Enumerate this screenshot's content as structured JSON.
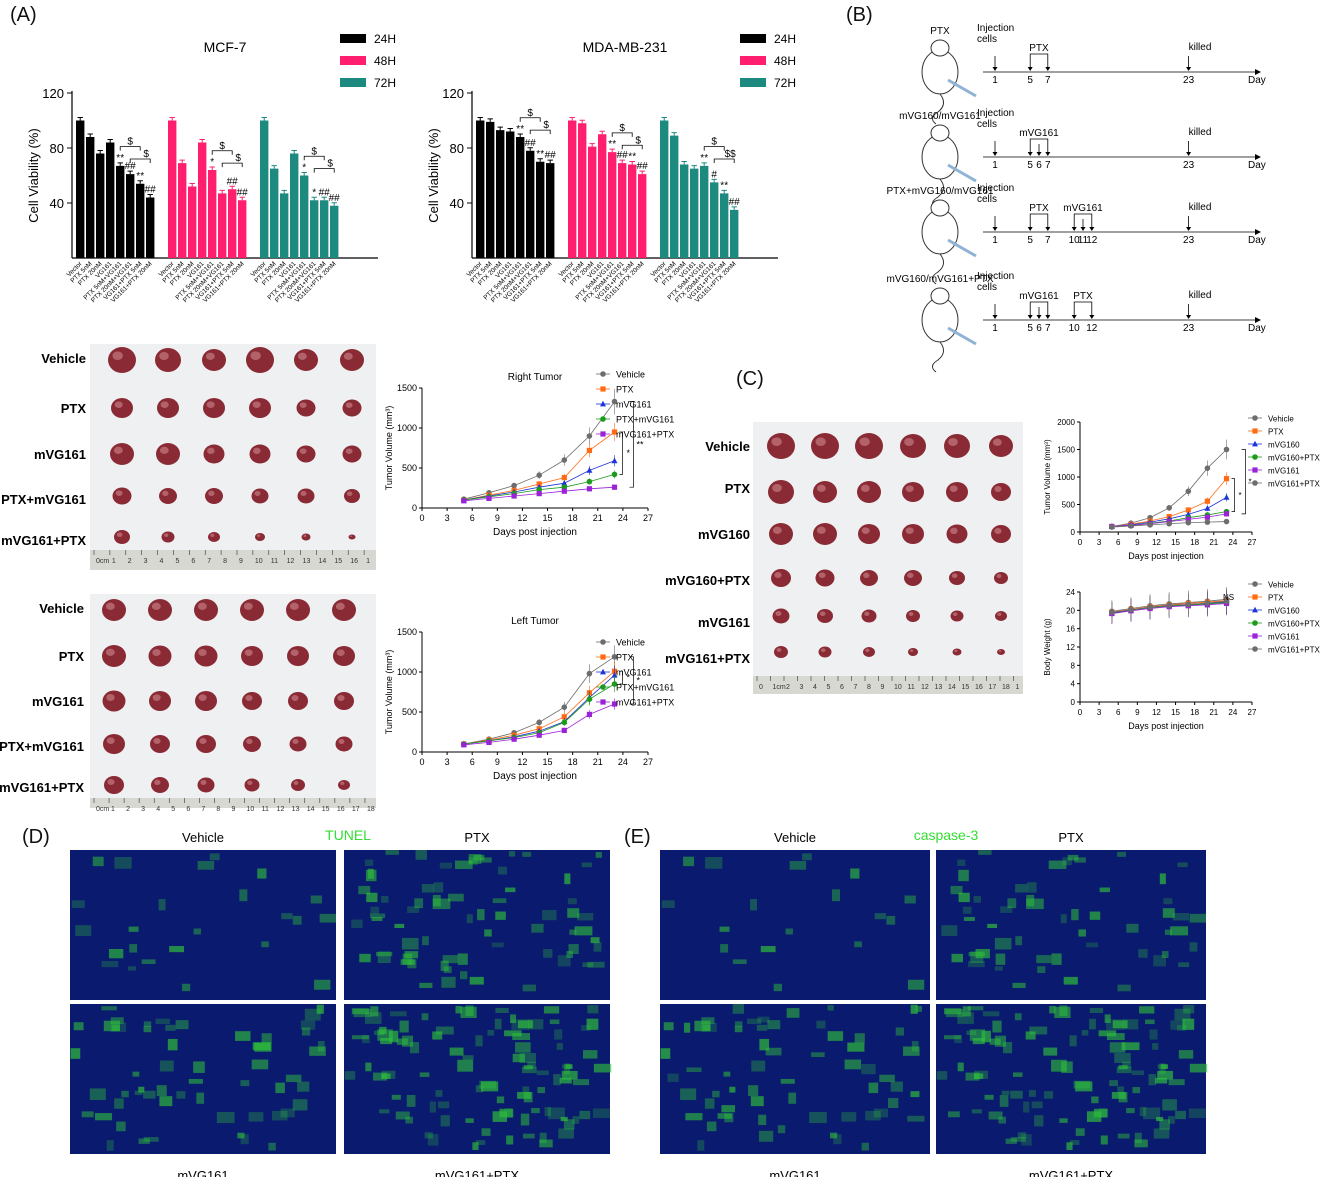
{
  "panels": {
    "A": "(A)",
    "B": "(B)",
    "C": "(C)",
    "D": "(D)",
    "E": "(E)"
  },
  "colors": {
    "black": "#000000",
    "pink": "#ff1f6e",
    "teal": "#1d8a80",
    "vehicle": "#6d6d6d",
    "ptx": "#ff6a13",
    "mvg161": "#1d35d8",
    "combo": "#1c9b1c",
    "mvg161ptx": "#9b22d6",
    "mvg160": "#1d35d8"
  },
  "chart_data": [
    {
      "id": "mcf7",
      "type": "bar",
      "title": "MCF-7",
      "ylabel": "Cell Viability (%)",
      "ylim": [
        0,
        120
      ],
      "yticks": [
        40,
        80,
        120
      ],
      "legend": [
        "24H",
        "48H",
        "72H"
      ],
      "groups": [
        {
          "name": "24H",
          "color": "#000000",
          "categories": [
            "Vector",
            "PTX 5nM",
            "PTX 20nM",
            "VG161",
            "PTX 5nM+VG161",
            "PTX 20nM+VG161",
            "VG161+PTX 5nM",
            "VG161+PTX 20nM"
          ],
          "values": [
            100,
            88,
            76,
            84,
            67,
            61,
            54,
            44
          ],
          "marks": [
            "",
            "",
            "",
            "",
            "**",
            "##",
            "**",
            "##"
          ]
        },
        {
          "name": "48H",
          "color": "#ff1f6e",
          "categories": [
            "Vector",
            "PTX 5nM",
            "PTX 20nM",
            "VG161",
            "PTX 5nM+VG161",
            "PTX 20nM+VG161",
            "VG161+PTX 5nM",
            "VG161+PTX 20nM"
          ],
          "values": [
            100,
            69,
            52,
            84,
            64,
            47,
            50,
            42
          ],
          "marks": [
            "",
            "",
            "",
            "",
            "*",
            "",
            "##",
            "##"
          ]
        },
        {
          "name": "72H",
          "color": "#1d8a80",
          "categories": [
            "Vector",
            "PTX 5nM",
            "PTX 20nM",
            "VG161",
            "PTX 5nM+VG161",
            "PTX 20nM+VG161",
            "VG161+PTX 5nM",
            "VG161+PTX 20nM"
          ],
          "values": [
            100,
            65,
            47,
            76,
            60,
            42,
            42,
            38
          ],
          "marks": [
            "",
            "",
            "",
            "",
            "*",
            "*",
            "##",
            "##"
          ]
        }
      ],
      "brackets": [
        "$",
        "$"
      ]
    },
    {
      "id": "mda",
      "type": "bar",
      "title": "MDA-MB-231",
      "ylabel": "Cell Viability (%)",
      "ylim": [
        0,
        120
      ],
      "yticks": [
        40,
        80,
        120
      ],
      "legend": [
        "24H",
        "48H",
        "72H"
      ],
      "groups": [
        {
          "name": "24H",
          "color": "#000000",
          "categories": [
            "Vector",
            "PTX 5nM",
            "PTX 20nM",
            "VG161",
            "PTX 5nM+VG161",
            "PTX 20nM+VG161",
            "VG161+PTX 5nM",
            "VG161+PTX 20nM"
          ],
          "values": [
            100,
            99,
            93,
            92,
            88,
            78,
            70,
            69
          ],
          "marks": [
            "",
            "",
            "",
            "",
            "**",
            "##",
            "**",
            "##"
          ]
        },
        {
          "name": "48H",
          "color": "#ff1f6e",
          "categories": [
            "Vector",
            "PTX 5nM",
            "PTX 20nM",
            "VG161",
            "PTX 5nM+VG161",
            "PTX 20nM+VG161",
            "VG161+PTX 5nM",
            "VG161+PTX 20nM"
          ],
          "values": [
            100,
            98,
            81,
            90,
            77,
            69,
            68,
            61
          ],
          "marks": [
            "",
            "",
            "",
            "",
            "**",
            "##",
            "**",
            "##"
          ]
        },
        {
          "name": "72H",
          "color": "#1d8a80",
          "categories": [
            "Vector",
            "PTX 5nM",
            "PTX 20nM",
            "VG161",
            "PTX 5nM+VG161",
            "PTX 20nM+VG161",
            "VG161+PTX 5nM",
            "VG161+PTX 20nM"
          ],
          "values": [
            100,
            89,
            68,
            65,
            67,
            55,
            47,
            35
          ],
          "marks": [
            "",
            "",
            "",
            "",
            "**",
            "#",
            "**",
            "##"
          ]
        }
      ],
      "brackets": [
        "$",
        "$",
        "$$",
        "$$"
      ]
    },
    {
      "id": "right-tumor",
      "type": "line",
      "title": "Right Tumor",
      "xlabel": "Days post injection",
      "ylabel": "Tumor Volume (mm³)",
      "xlim": [
        0,
        27
      ],
      "ylim": [
        0,
        1500
      ],
      "xticks": [
        0,
        3,
        6,
        9,
        12,
        15,
        18,
        21,
        24,
        27
      ],
      "yticks": [
        0,
        500,
        1000,
        1500
      ],
      "x": [
        5,
        8,
        11,
        14,
        17,
        20,
        23
      ],
      "series": [
        {
          "name": "Vehicle",
          "color": "#6d6d6d",
          "marker": "circle",
          "values": [
            110,
            190,
            280,
            410,
            600,
            900,
            1330
          ]
        },
        {
          "name": "PTX",
          "color": "#ff6a13",
          "marker": "square",
          "values": [
            100,
            160,
            220,
            300,
            380,
            720,
            950
          ]
        },
        {
          "name": "mVG161",
          "color": "#1d35d8",
          "marker": "triangle",
          "values": [
            100,
            150,
            200,
            260,
            310,
            470,
            590
          ]
        },
        {
          "name": "PTX+mVG161",
          "color": "#1c9b1c",
          "marker": "circle",
          "values": [
            100,
            140,
            180,
            230,
            260,
            330,
            420
          ]
        },
        {
          "name": "mVG161+PTX",
          "color": "#9b22d6",
          "marker": "square",
          "values": [
            90,
            120,
            150,
            180,
            210,
            240,
            260
          ]
        }
      ],
      "sig": [
        "*",
        "**"
      ]
    },
    {
      "id": "left-tumor",
      "type": "line",
      "title": "Left Tumor",
      "xlabel": "Days post injection",
      "ylabel": "Tumor Volume (mm³)",
      "xlim": [
        0,
        27
      ],
      "ylim": [
        0,
        1500
      ],
      "xticks": [
        0,
        3,
        6,
        9,
        12,
        15,
        18,
        21,
        24,
        27
      ],
      "yticks": [
        0,
        500,
        1000,
        1500
      ],
      "x": [
        5,
        8,
        11,
        14,
        17,
        20,
        23
      ],
      "series": [
        {
          "name": "Vehicle",
          "color": "#6d6d6d",
          "marker": "circle",
          "values": [
            100,
            160,
            240,
            370,
            560,
            980,
            1190
          ]
        },
        {
          "name": "PTX",
          "color": "#ff6a13",
          "marker": "square",
          "values": [
            100,
            150,
            210,
            290,
            440,
            740,
            1010
          ]
        },
        {
          "name": "mVG161",
          "color": "#1d35d8",
          "marker": "triangle",
          "values": [
            100,
            140,
            190,
            260,
            380,
            680,
            960
          ]
        },
        {
          "name": "PTX+mVG161",
          "color": "#1c9b1c",
          "marker": "circle",
          "values": [
            100,
            140,
            180,
            240,
            370,
            660,
            850
          ]
        },
        {
          "name": "mVG161+PTX",
          "color": "#9b22d6",
          "marker": "square",
          "values": [
            90,
            120,
            160,
            210,
            270,
            470,
            600
          ]
        }
      ],
      "sig": [
        "*",
        "*"
      ]
    },
    {
      "id": "c-tumor",
      "type": "line",
      "title": "",
      "xlabel": "Days post injection",
      "ylabel": "Tumor Volume (mm³)",
      "xlim": [
        0,
        27
      ],
      "ylim": [
        0,
        2000
      ],
      "xticks": [
        0,
        3,
        6,
        9,
        12,
        15,
        18,
        21,
        24,
        27
      ],
      "yticks": [
        0,
        500,
        1000,
        1500,
        2000
      ],
      "x": [
        5,
        8,
        11,
        14,
        17,
        20,
        23
      ],
      "series": [
        {
          "name": "Vehicle",
          "color": "#6d6d6d",
          "marker": "circle",
          "values": [
            100,
            160,
            260,
            440,
            740,
            1160,
            1500
          ]
        },
        {
          "name": "PTX",
          "color": "#ff6a13",
          "marker": "square",
          "values": [
            100,
            140,
            200,
            280,
            400,
            560,
            970
          ]
        },
        {
          "name": "mVG160",
          "color": "#1d35d8",
          "marker": "triangle",
          "values": [
            100,
            130,
            180,
            240,
            320,
            430,
            630
          ]
        },
        {
          "name": "mVG160+PTX",
          "color": "#1c9b1c",
          "marker": "circle",
          "values": [
            100,
            120,
            160,
            200,
            260,
            310,
            370
          ]
        },
        {
          "name": "mVG161",
          "color": "#9b22d6",
          "marker": "square",
          "values": [
            100,
            120,
            150,
            190,
            230,
            270,
            330
          ]
        },
        {
          "name": "mVG161+PTX",
          "color": "#6d6d6d",
          "marker": "circle",
          "values": [
            90,
            110,
            130,
            150,
            170,
            180,
            190
          ]
        }
      ],
      "sig": [
        "*",
        "*"
      ]
    },
    {
      "id": "c-weight",
      "type": "line",
      "title": "",
      "xlabel": "Days post injection",
      "ylabel": "Body Weight (g)",
      "xlim": [
        0,
        27
      ],
      "ylim": [
        0,
        24
      ],
      "xticks": [
        0,
        3,
        6,
        9,
        12,
        15,
        18,
        21,
        24,
        27
      ],
      "yticks": [
        0,
        4,
        8,
        12,
        16,
        20,
        24
      ],
      "x": [
        5,
        8,
        11,
        14,
        17,
        20,
        23
      ],
      "series": [
        {
          "name": "Vehicle",
          "color": "#6d6d6d",
          "marker": "circle",
          "values": [
            19.8,
            20.4,
            21.0,
            21.4,
            21.7,
            22.0,
            22.4
          ]
        },
        {
          "name": "PTX",
          "color": "#ff6a13",
          "marker": "square",
          "values": [
            19.6,
            20.2,
            20.8,
            21.2,
            21.5,
            21.8,
            22.1
          ]
        },
        {
          "name": "mVG160",
          "color": "#1d35d8",
          "marker": "triangle",
          "values": [
            19.4,
            20.0,
            20.6,
            21.0,
            21.2,
            21.5,
            21.8
          ]
        },
        {
          "name": "mVG160+PTX",
          "color": "#1c9b1c",
          "marker": "circle",
          "values": [
            19.5,
            20.1,
            20.6,
            20.9,
            21.1,
            21.4,
            21.7
          ]
        },
        {
          "name": "mVG161",
          "color": "#9b22d6",
          "marker": "square",
          "values": [
            19.3,
            19.9,
            20.4,
            20.8,
            21.0,
            21.2,
            21.5
          ]
        },
        {
          "name": "mVG161+PTX",
          "color": "#6d6d6d",
          "marker": "circle",
          "values": [
            19.6,
            20.1,
            20.7,
            21.1,
            21.3,
            21.6,
            22.0
          ]
        }
      ],
      "sig": [
        "NS"
      ]
    }
  ],
  "schedule": {
    "rows": [
      {
        "group": "PTX",
        "events": [
          {
            "day": "1",
            "label": "Injection cells"
          },
          {
            "range": "5 7",
            "label": "PTX"
          },
          {
            "day": "23",
            "label": "killed"
          }
        ]
      },
      {
        "group": "mVG160/mVG161",
        "events": [
          {
            "day": "1",
            "label": "Injection cells"
          },
          {
            "range": "5 6 7",
            "label": "mVG161"
          },
          {
            "day": "23",
            "label": "killed"
          }
        ]
      },
      {
        "group": "PTX+mVG160/mVG161",
        "events": [
          {
            "day": "1",
            "label": "Injection cells"
          },
          {
            "range": "5 7",
            "label": "PTX"
          },
          {
            "range": "10 11 12",
            "label": "mVG161"
          },
          {
            "day": "23",
            "label": "killed"
          }
        ]
      },
      {
        "group": "mVG160/mVG161+PTX",
        "events": [
          {
            "day": "1",
            "label": "Injection cells"
          },
          {
            "range": "5 6 7",
            "label": "mVG161"
          },
          {
            "range": "10 12",
            "label": "PTX"
          },
          {
            "day": "23",
            "label": "killed"
          }
        ]
      }
    ],
    "axis_label": "Day"
  },
  "tumor_photos": {
    "right": {
      "rows": [
        "Vehicle",
        "PTX",
        "mVG161",
        "PTX+mVG161",
        "mVG161+PTX"
      ],
      "sizes": [
        [
          26,
          24,
          22,
          26,
          22,
          22
        ],
        [
          20,
          20,
          20,
          20,
          17,
          17
        ],
        [
          22,
          22,
          19,
          19,
          17,
          17
        ],
        [
          17,
          16,
          16,
          15,
          15,
          14
        ],
        [
          14,
          11,
          10,
          8,
          7,
          5
        ]
      ]
    },
    "left": {
      "rows": [
        "Vehicle",
        "PTX",
        "mVG161",
        "PTX+mVG161",
        "mVG161+PTX"
      ],
      "sizes": [
        [
          22,
          22,
          22,
          22,
          22,
          22
        ],
        [
          22,
          21,
          21,
          20,
          20,
          20
        ],
        [
          21,
          20,
          20,
          18,
          18,
          18
        ],
        [
          20,
          18,
          18,
          16,
          15,
          15
        ],
        [
          18,
          16,
          15,
          13,
          12,
          10
        ]
      ]
    },
    "c": {
      "rows": [
        "Vehicle",
        "PTX",
        "mVG160",
        "mVG160+PTX",
        "mVG161",
        "mVG161+PTX"
      ],
      "sizes": [
        [
          26,
          26,
          26,
          24,
          24,
          22
        ],
        [
          24,
          22,
          22,
          20,
          20,
          18
        ],
        [
          22,
          22,
          20,
          20,
          19,
          18
        ],
        [
          18,
          17,
          16,
          16,
          14,
          12
        ],
        [
          15,
          14,
          13,
          12,
          11,
          10
        ],
        [
          12,
          11,
          10,
          8,
          7,
          6
        ]
      ]
    }
  },
  "ruler": {
    "labels": [
      "0cm",
      "1",
      "2",
      "3",
      "4",
      "5",
      "6",
      "7",
      "8",
      "9",
      "10",
      "11",
      "12",
      "13",
      "14",
      "15",
      "16",
      "1"
    ]
  },
  "ruler_c": {
    "labels": [
      "0",
      "1cm",
      "2",
      "3",
      "4",
      "5",
      "6",
      "7",
      "8",
      "9",
      "10",
      "11",
      "12",
      "13",
      "14",
      "15",
      "16",
      "17",
      "18",
      "1"
    ]
  },
  "ruler_left": {
    "labels": [
      "0cm",
      "1",
      "2",
      "3",
      "4",
      "5",
      "6",
      "7",
      "8",
      "9",
      "10",
      "11",
      "12",
      "13",
      "14",
      "15",
      "16",
      "17",
      "18"
    ]
  },
  "stain_d": {
    "title": "TUNEL",
    "top": [
      "Vehicle",
      "PTX"
    ],
    "bottom": [
      "mVG161",
      "mVG161+PTX"
    ],
    "intensity": [
      0.15,
      0.45,
      0.35,
      0.65
    ]
  },
  "stain_e": {
    "title": "caspase-3",
    "top": [
      "Vehicle",
      "PTX"
    ],
    "bottom": [
      "mVG161",
      "mVG161+PTX"
    ],
    "intensity": [
      0.12,
      0.35,
      0.4,
      0.7
    ]
  }
}
